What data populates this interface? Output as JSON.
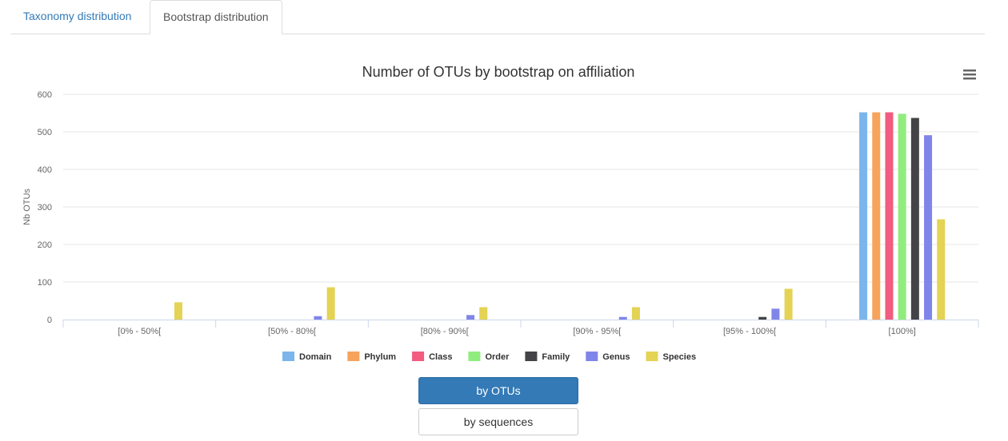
{
  "tabs": [
    {
      "label": "Taxonomy distribution",
      "active": false
    },
    {
      "label": "Bootstrap distribution",
      "active": true
    }
  ],
  "buttons": {
    "by_otus": "by OTUs",
    "by_sequences": "by sequences"
  },
  "icons": {
    "menu": "hamburger-menu-icon"
  },
  "chart_data": {
    "type": "bar",
    "title": "Number of OTUs by bootstrap on affiliation",
    "xlabel": "",
    "ylabel": "Nb OTUs",
    "ylim": [
      0,
      600
    ],
    "yticks": [
      0,
      100,
      200,
      300,
      400,
      500,
      600
    ],
    "grid": true,
    "legend_position": "bottom",
    "categories": [
      "[0% - 50%[",
      "[50% - 80%[",
      "[80% - 90%[",
      "[90% - 95%[",
      "[95% - 100%[",
      "[100%]"
    ],
    "series": [
      {
        "name": "Domain",
        "color": "#7cb5ec",
        "values": [
          0,
          0,
          0,
          0,
          0,
          552
        ]
      },
      {
        "name": "Phylum",
        "color": "#f7a35c",
        "values": [
          0,
          0,
          0,
          0,
          0,
          552
        ]
      },
      {
        "name": "Class",
        "color": "#f15c80",
        "values": [
          0,
          0,
          0,
          0,
          0,
          552
        ]
      },
      {
        "name": "Order",
        "color": "#90ed7d",
        "values": [
          0,
          0,
          0,
          0,
          0,
          548
        ]
      },
      {
        "name": "Family",
        "color": "#434348",
        "values": [
          0,
          0,
          0,
          0,
          7,
          537
        ]
      },
      {
        "name": "Genus",
        "color": "#8085e9",
        "values": [
          0,
          9,
          12,
          7,
          29,
          491
        ]
      },
      {
        "name": "Species",
        "color": "#e4d354",
        "values": [
          46,
          86,
          33,
          33,
          82,
          267
        ]
      }
    ]
  }
}
